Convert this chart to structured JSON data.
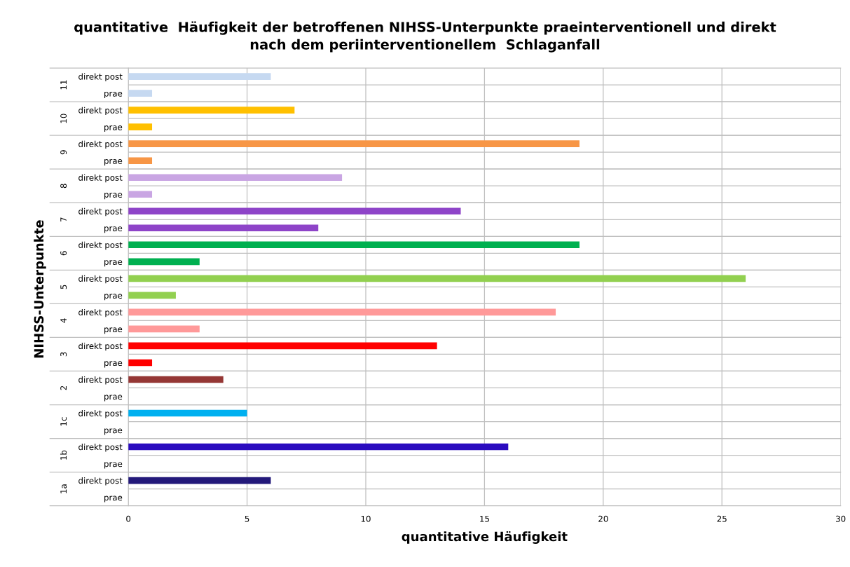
{
  "chart_data": {
    "type": "bar",
    "orientation": "horizontal",
    "title": "quantitative  Häufigkeit der betroffenen NIHSS-Unterpunkte praeinterventionell und direkt\nnach dem periinterventionellem  Schlaganfall",
    "xlabel": "quantitative Häufigkeit",
    "ylabel": "NIHSS-Unterpunkte",
    "categories": [
      "direkt post",
      "prae",
      "direkt post",
      "prae",
      "direkt post",
      "prae",
      "direkt post",
      "prae",
      "direkt post",
      "prae",
      "direkt post",
      "prae",
      "direkt post",
      "prae",
      "direkt post",
      "prae",
      "direkt post",
      "prae",
      "direkt post",
      "prae",
      "direkt post",
      "prae",
      "direkt post",
      "prae",
      "direkt post",
      "prae"
    ],
    "values": [
      6,
      1,
      7,
      1,
      19,
      1,
      9,
      1,
      14,
      8,
      19,
      3,
      26,
      2,
      18,
      3,
      13,
      1,
      4,
      0,
      5,
      0,
      16,
      0,
      6,
      0
    ],
    "colors": [
      "#c6d9f1",
      "#c6d9f1",
      "#ffc000",
      "#ffc000",
      "#f79646",
      "#f79646",
      "#c9a5e3",
      "#c9a5e3",
      "#8e44c8",
      "#8e44c8",
      "#00b050",
      "#00b050",
      "#92d050",
      "#92d050",
      "#ff9999",
      "#ff9999",
      "#ff0000",
      "#ff0000",
      "#953735",
      "#953735",
      "#00b0f0",
      "#00b0f0",
      "#2a0bbf",
      "#2a0bbf",
      "#23197a",
      "#23197a"
    ],
    "annotations": [
      "11",
      "10",
      "9",
      "8",
      "7",
      "6",
      "5",
      "4",
      "3",
      "2",
      "1c",
      "1b",
      "1a"
    ],
    "xlim": [
      0,
      30
    ],
    "xticks": [
      0,
      5,
      10,
      15,
      20,
      25,
      30
    ],
    "grid": true
  }
}
